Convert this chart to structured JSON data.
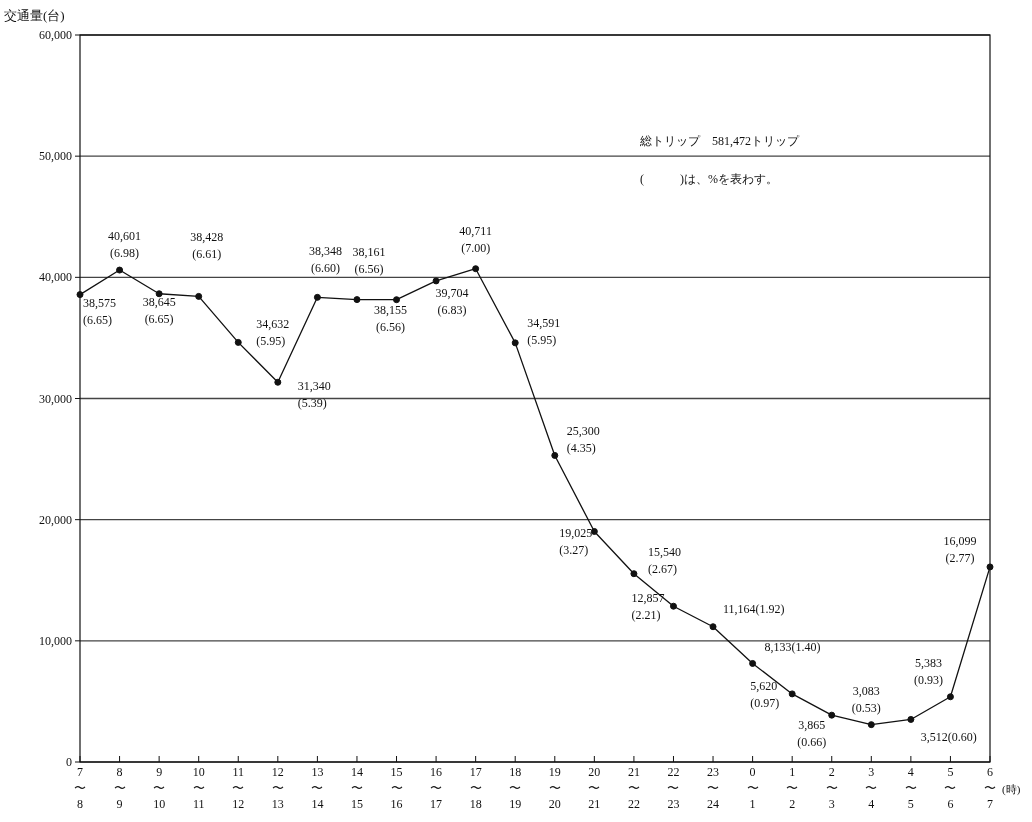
{
  "chart_data": {
    "type": "line",
    "ylabel": "交通量(台)",
    "xlabel": "(時)",
    "annotations": [
      "総トリップ　581,472トリップ",
      "(　　　)は、%を表わす。"
    ],
    "categories": [
      "7〜8",
      "8〜9",
      "9〜10",
      "10〜11",
      "11〜12",
      "12〜13",
      "13〜14",
      "14〜15",
      "15〜16",
      "16〜17",
      "17〜18",
      "18〜19",
      "19〜20",
      "20〜21",
      "21〜22",
      "22〜23",
      "23〜24",
      "0〜1",
      "1〜2",
      "2〜3",
      "3〜4",
      "4〜5",
      "5〜6",
      "6〜7"
    ],
    "values": [
      38575,
      40601,
      38645,
      38428,
      34632,
      31340,
      38348,
      38161,
      38155,
      39704,
      40711,
      34591,
      25300,
      19025,
      15540,
      12857,
      11164,
      8133,
      5620,
      3865,
      3083,
      3512,
      5383,
      16099
    ],
    "value_labels": [
      "38,575\n(6.65)",
      "40,601\n(6.98)",
      "38,645\n(6.65)",
      "38,428\n(6.61)",
      "34,632\n(5.95)",
      "31,340\n(5.39)",
      "38,348\n(6.60)",
      "38,161\n(6.56)",
      "38,155\n(6.56)",
      "39,704\n(6.83)",
      "40,711\n(7.00)",
      "34,591\n(5.95)",
      "25,300\n(4.35)",
      "19,025\n(3.27)",
      "15,540\n(2.67)",
      "12,857\n(2.21)",
      "11,164(1.92)",
      "8,133(1.40)",
      "5,620\n(0.97)",
      "3,865\n(0.66)",
      "3,083\n(0.53)",
      "3,512(0.60)",
      "5,383\n(0.93)",
      "16,099\n(2.77)"
    ],
    "color": "#111111",
    "marker": "circle",
    "line_style": "solid",
    "grid": "y",
    "ylim": [
      0,
      60000
    ],
    "yticks": [
      {
        "value": 0,
        "label": "0"
      },
      {
        "value": 10000,
        "label": "10,000"
      },
      {
        "value": 20000,
        "label": "20,000"
      },
      {
        "value": 30000,
        "label": "30,000"
      },
      {
        "value": 40000,
        "label": "40,000"
      },
      {
        "value": 50000,
        "label": "50,000"
      },
      {
        "value": 60000,
        "label": "60,000"
      }
    ]
  }
}
